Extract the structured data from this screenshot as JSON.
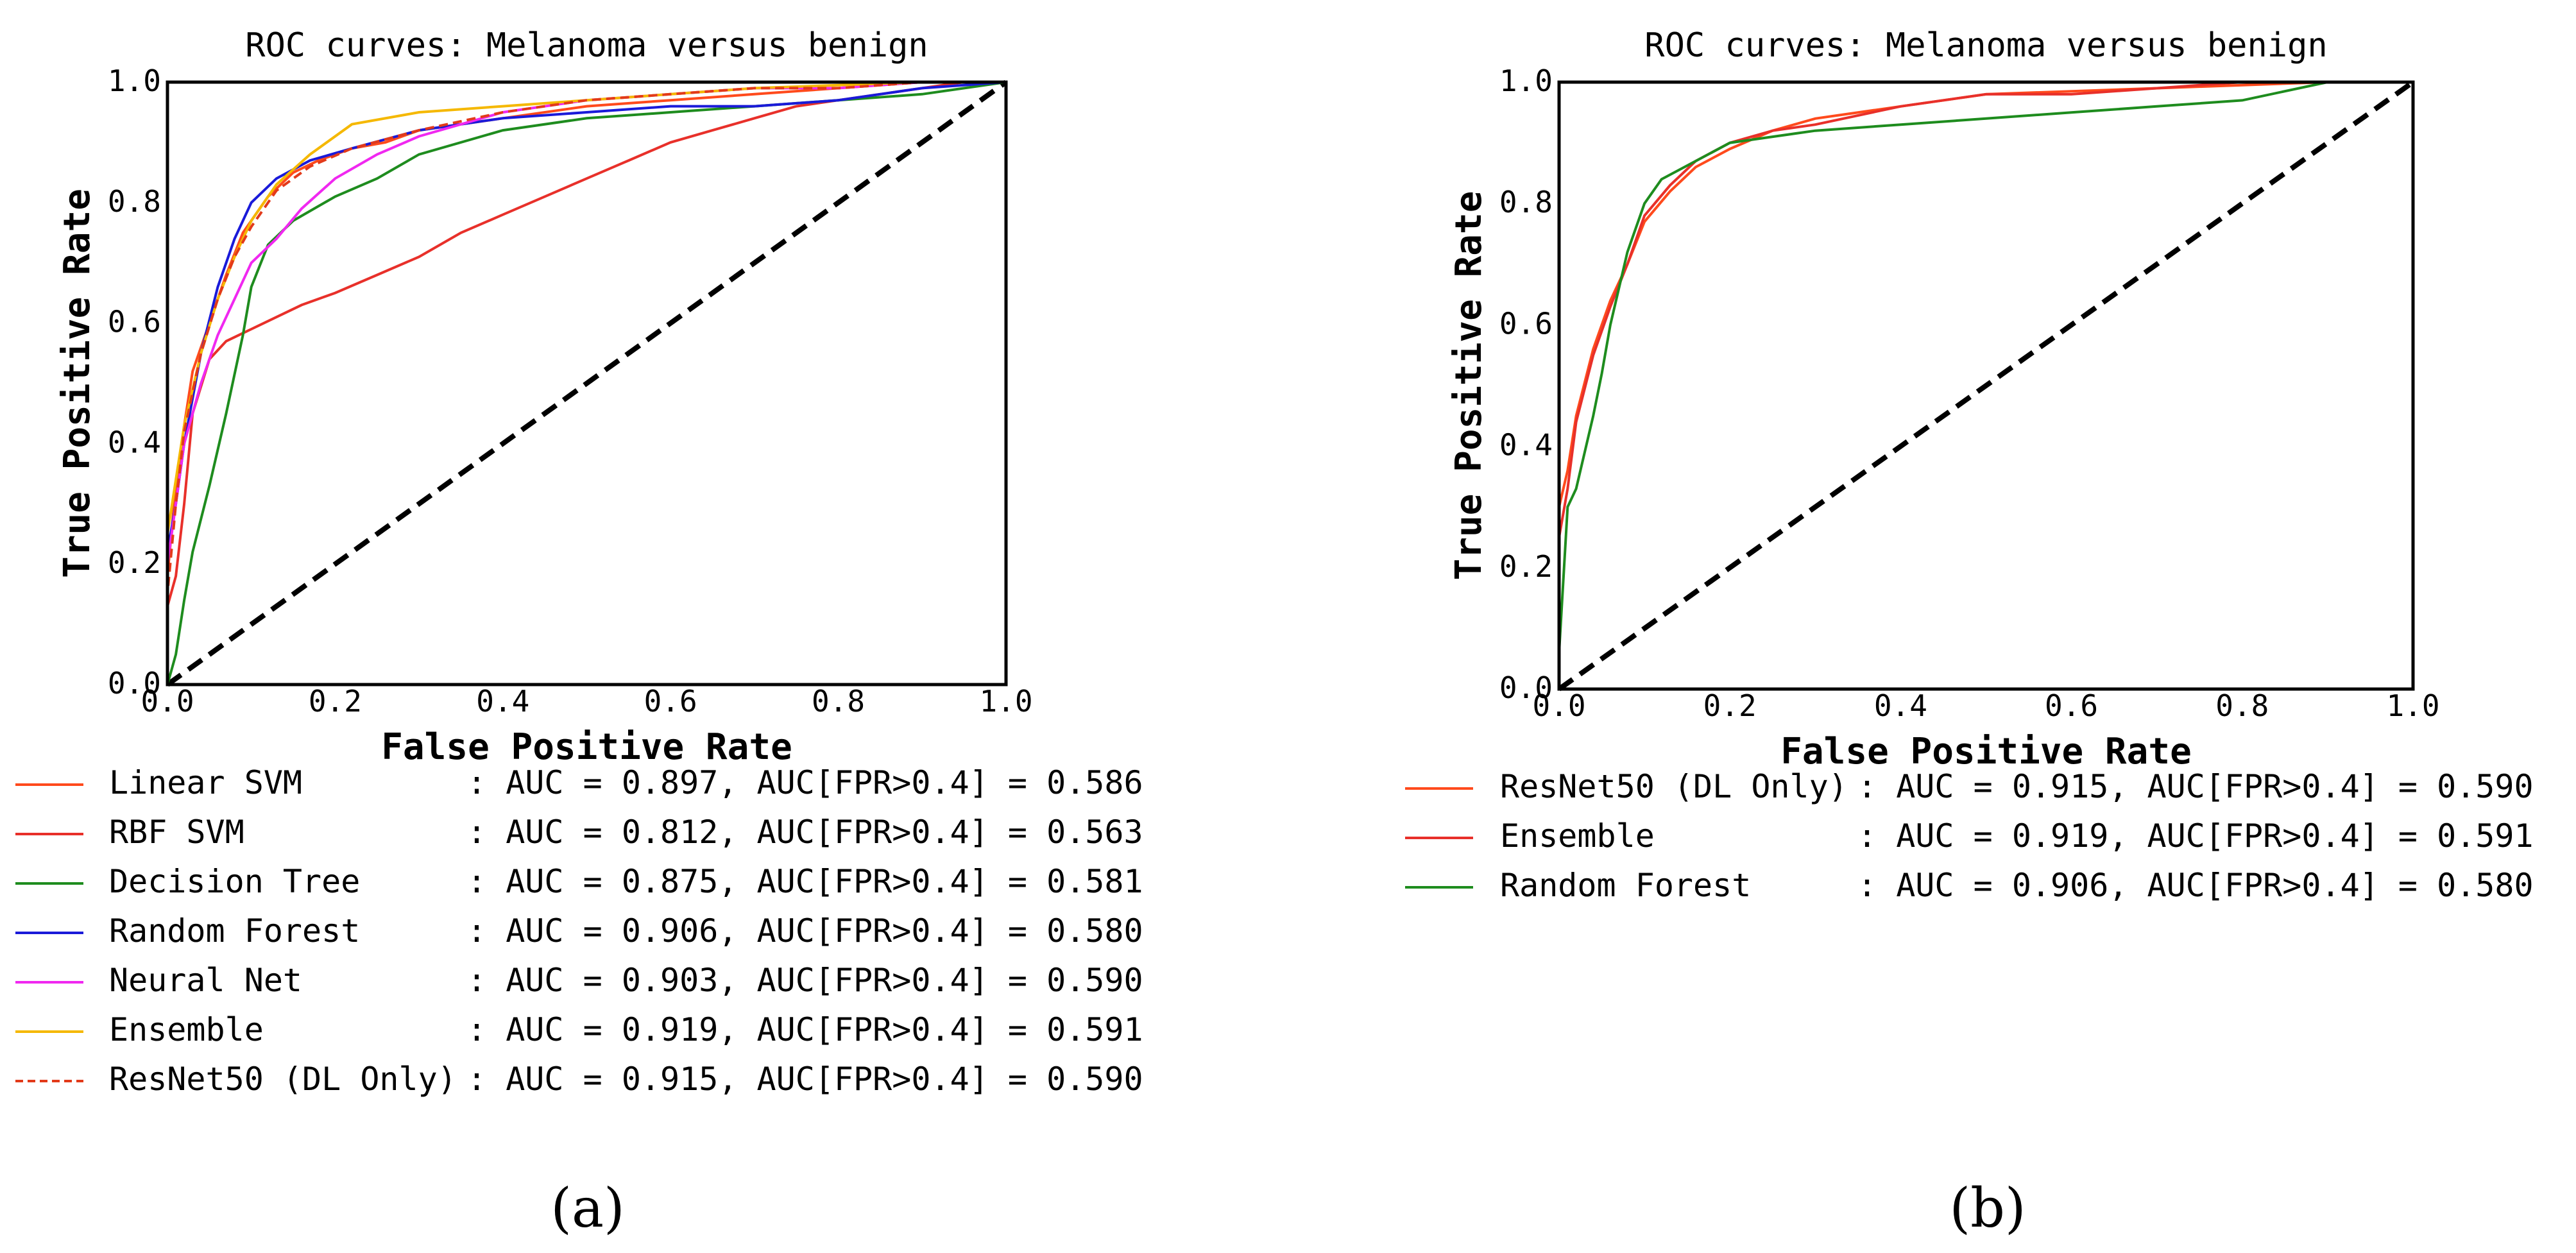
{
  "chart_data": [
    {
      "type": "line",
      "title": "ROC curves: Melanoma versus benign",
      "xlabel": "False Positive Rate",
      "ylabel": "True Positive Rate",
      "xlim": [
        0.0,
        1.0
      ],
      "ylim": [
        0.0,
        1.0
      ],
      "xticks": [
        "0.0",
        "0.2",
        "0.4",
        "0.6",
        "0.8",
        "1.0"
      ],
      "yticks": [
        "0.0",
        "0.2",
        "0.4",
        "0.6",
        "0.8",
        "1.0"
      ],
      "grid": false,
      "legend_placement": "below",
      "caption": "(a)",
      "chance_line": {
        "x": [
          0,
          1
        ],
        "y": [
          0,
          1
        ],
        "color": "#000000",
        "style": "dashed"
      },
      "series": [
        {
          "name": "Linear SVM",
          "legend_text": ": AUC = 0.897, AUC[FPR>0.4] = 0.586",
          "color": "#ff4a1c",
          "style": "solid",
          "x": [
            0.0,
            0.0,
            0.01,
            0.02,
            0.03,
            0.05,
            0.07,
            0.09,
            0.12,
            0.15,
            0.18,
            0.22,
            0.26,
            0.3,
            0.35,
            0.4,
            0.5,
            0.6,
            0.7,
            0.8,
            0.9,
            1.0
          ],
          "y": [
            0.0,
            0.18,
            0.33,
            0.43,
            0.52,
            0.6,
            0.68,
            0.75,
            0.81,
            0.85,
            0.87,
            0.89,
            0.9,
            0.92,
            0.93,
            0.94,
            0.96,
            0.97,
            0.98,
            0.99,
            1.0,
            1.0
          ]
        },
        {
          "name": "RBF SVM",
          "legend_text": ": AUC = 0.812, AUC[FPR>0.4] = 0.563",
          "color": "#e8302a",
          "style": "solid",
          "x": [
            0.0,
            0.0,
            0.01,
            0.02,
            0.03,
            0.05,
            0.07,
            0.1,
            0.13,
            0.16,
            0.2,
            0.25,
            0.3,
            0.35,
            0.4,
            0.45,
            0.5,
            0.55,
            0.6,
            0.65,
            0.7,
            0.75,
            0.8,
            0.85,
            0.9,
            0.95,
            1.0
          ],
          "y": [
            0.0,
            0.13,
            0.18,
            0.3,
            0.45,
            0.54,
            0.57,
            0.59,
            0.61,
            0.63,
            0.65,
            0.68,
            0.71,
            0.75,
            0.78,
            0.81,
            0.84,
            0.87,
            0.9,
            0.92,
            0.94,
            0.96,
            0.97,
            0.98,
            0.99,
            1.0,
            1.0
          ]
        },
        {
          "name": "Decision Tree",
          "legend_text": ": AUC = 0.875, AUC[FPR>0.4] = 0.581",
          "color": "#1e8c1e",
          "style": "solid",
          "x": [
            0.0,
            0.01,
            0.02,
            0.03,
            0.05,
            0.07,
            0.09,
            0.1,
            0.12,
            0.15,
            0.2,
            0.25,
            0.3,
            0.4,
            0.5,
            0.6,
            0.7,
            0.8,
            0.9,
            1.0
          ],
          "y": [
            0.0,
            0.05,
            0.14,
            0.22,
            0.33,
            0.45,
            0.58,
            0.66,
            0.73,
            0.77,
            0.81,
            0.84,
            0.88,
            0.92,
            0.94,
            0.95,
            0.96,
            0.97,
            0.98,
            1.0
          ]
        },
        {
          "name": "Random Forest",
          "legend_text": ": AUC = 0.906, AUC[FPR>0.4] = 0.580",
          "color": "#1a1ad9",
          "style": "solid",
          "x": [
            0.0,
            0.0,
            0.01,
            0.02,
            0.04,
            0.06,
            0.08,
            0.1,
            0.13,
            0.17,
            0.22,
            0.3,
            0.4,
            0.5,
            0.6,
            0.7,
            0.8,
            0.9,
            1.0
          ],
          "y": [
            0.0,
            0.22,
            0.3,
            0.4,
            0.55,
            0.66,
            0.74,
            0.8,
            0.84,
            0.87,
            0.89,
            0.92,
            0.94,
            0.95,
            0.96,
            0.96,
            0.97,
            0.99,
            1.0
          ]
        },
        {
          "name": "Neural Net",
          "legend_text": ": AUC = 0.903, AUC[FPR>0.4] = 0.590",
          "color": "#f028f0",
          "style": "solid",
          "x": [
            0.0,
            0.0,
            0.01,
            0.02,
            0.04,
            0.06,
            0.08,
            0.1,
            0.13,
            0.16,
            0.2,
            0.25,
            0.3,
            0.4,
            0.5,
            0.6,
            0.7,
            0.8,
            0.9,
            1.0
          ],
          "y": [
            0.0,
            0.2,
            0.3,
            0.4,
            0.5,
            0.58,
            0.64,
            0.7,
            0.74,
            0.79,
            0.84,
            0.88,
            0.91,
            0.95,
            0.97,
            0.98,
            0.99,
            0.99,
            1.0,
            1.0
          ]
        },
        {
          "name": "Ensemble",
          "legend_text": ": AUC = 0.919, AUC[FPR>0.4] = 0.591",
          "color": "#f5b800",
          "style": "solid",
          "x": [
            0.0,
            0.0,
            0.01,
            0.02,
            0.04,
            0.06,
            0.08,
            0.1,
            0.13,
            0.17,
            0.22,
            0.3,
            0.4,
            0.5,
            0.6,
            0.7,
            0.8,
            0.9,
            1.0
          ],
          "y": [
            0.0,
            0.25,
            0.34,
            0.43,
            0.55,
            0.64,
            0.71,
            0.77,
            0.83,
            0.88,
            0.93,
            0.95,
            0.96,
            0.97,
            0.98,
            0.99,
            0.995,
            1.0,
            1.0
          ]
        },
        {
          "name": "ResNet50 (DL Only)",
          "legend_text": ": AUC = 0.915, AUC[FPR>0.4] = 0.590",
          "color": "#e23a1a",
          "style": "dashed",
          "x": [
            0.0,
            0.0,
            0.01,
            0.02,
            0.04,
            0.06,
            0.08,
            0.1,
            0.13,
            0.17,
            0.22,
            0.3,
            0.4,
            0.5,
            0.6,
            0.7,
            0.8,
            0.9,
            1.0
          ],
          "y": [
            0.0,
            0.15,
            0.3,
            0.42,
            0.55,
            0.64,
            0.71,
            0.76,
            0.82,
            0.86,
            0.89,
            0.92,
            0.95,
            0.97,
            0.98,
            0.99,
            0.99,
            1.0,
            1.0
          ]
        }
      ]
    },
    {
      "type": "line",
      "title": "ROC curves: Melanoma versus benign",
      "xlabel": "False Positive Rate",
      "ylabel": "True Positive Rate",
      "xlim": [
        0.0,
        1.0
      ],
      "ylim": [
        0.0,
        1.0
      ],
      "xticks": [
        "0.0",
        "0.2",
        "0.4",
        "0.6",
        "0.8",
        "1.0"
      ],
      "yticks": [
        "0.0",
        "0.2",
        "0.4",
        "0.6",
        "0.8",
        "1.0"
      ],
      "grid": false,
      "legend_placement": "below",
      "caption": "(b)",
      "chance_line": {
        "x": [
          0,
          1
        ],
        "y": [
          0,
          1
        ],
        "color": "#000000",
        "style": "dashed"
      },
      "series": [
        {
          "name": "ResNet50 (DL Only)",
          "legend_text": ": AUC = 0.915, AUC[FPR>0.4] = 0.590",
          "color": "#ff4a1c",
          "style": "solid",
          "x": [
            0.0,
            0.0,
            0.01,
            0.02,
            0.04,
            0.06,
            0.08,
            0.1,
            0.13,
            0.16,
            0.2,
            0.25,
            0.3,
            0.4,
            0.5,
            0.6,
            0.7,
            0.8,
            0.9,
            1.0
          ],
          "y": [
            0.0,
            0.3,
            0.36,
            0.45,
            0.56,
            0.64,
            0.7,
            0.77,
            0.82,
            0.86,
            0.89,
            0.92,
            0.94,
            0.96,
            0.98,
            0.985,
            0.99,
            0.995,
            1.0,
            1.0
          ]
        },
        {
          "name": "Ensemble",
          "legend_text": ": AUC = 0.919, AUC[FPR>0.4] = 0.591",
          "color": "#e8302a",
          "style": "solid",
          "x": [
            0.0,
            0.0,
            0.01,
            0.02,
            0.04,
            0.06,
            0.08,
            0.1,
            0.13,
            0.16,
            0.2,
            0.25,
            0.3,
            0.4,
            0.5,
            0.6,
            0.7,
            0.8,
            0.9,
            1.0
          ],
          "y": [
            0.0,
            0.25,
            0.33,
            0.44,
            0.55,
            0.63,
            0.7,
            0.78,
            0.83,
            0.87,
            0.9,
            0.92,
            0.93,
            0.96,
            0.98,
            0.98,
            0.99,
            1.0,
            1.0,
            1.0
          ]
        },
        {
          "name": "Random Forest",
          "legend_text": ": AUC = 0.906, AUC[FPR>0.4] = 0.580",
          "color": "#1e8c1e",
          "style": "solid",
          "x": [
            0.0,
            0.0,
            0.01,
            0.02,
            0.04,
            0.05,
            0.06,
            0.08,
            0.1,
            0.12,
            0.16,
            0.2,
            0.25,
            0.3,
            0.4,
            0.5,
            0.6,
            0.7,
            0.8,
            0.9,
            1.0
          ],
          "y": [
            0.0,
            0.06,
            0.3,
            0.33,
            0.45,
            0.52,
            0.6,
            0.72,
            0.8,
            0.84,
            0.87,
            0.9,
            0.91,
            0.92,
            0.93,
            0.94,
            0.95,
            0.96,
            0.97,
            1.0,
            1.0
          ]
        }
      ]
    }
  ]
}
